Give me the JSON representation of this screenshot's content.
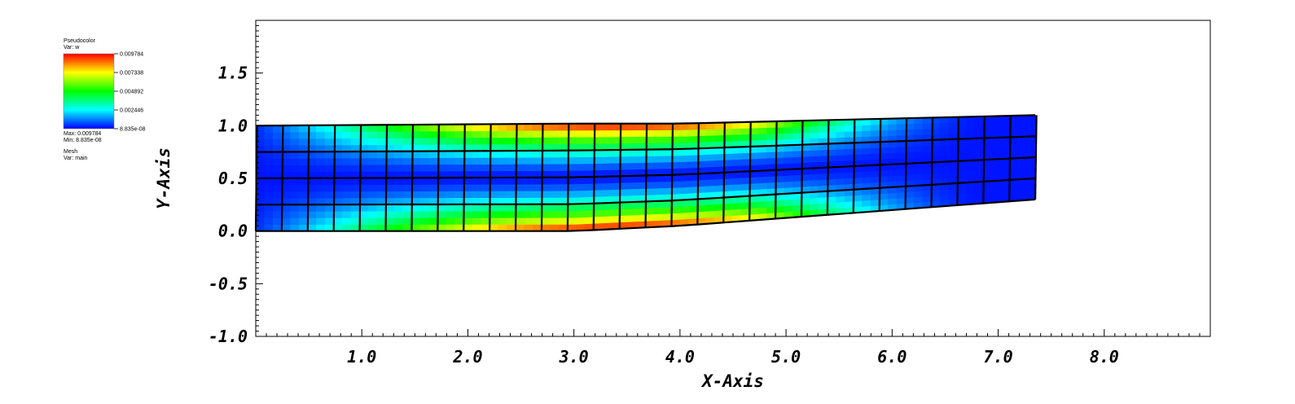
{
  "legend": {
    "plot_label": "Pseudocolor",
    "var_label": "Var: w",
    "ticks": [
      "0.009784",
      "0.007338",
      "0.004892",
      "0.002446",
      "8.835e-08"
    ],
    "max_label": "Max: 0.009784",
    "min_label": "Min: 8.835e-08",
    "mesh_label": "Mesh",
    "mesh_var_label": "Var: main"
  },
  "chart_data": {
    "type": "heatmap",
    "title": "",
    "xlabel": "X-Axis",
    "ylabel": "Y-Axis",
    "xlim": [
      0,
      9
    ],
    "ylim": [
      -1.0,
      2.0
    ],
    "x_ticks": [
      "1.0",
      "2.0",
      "3.0",
      "4.0",
      "5.0",
      "6.0",
      "7.0",
      "8.0"
    ],
    "x_tick_values": [
      1,
      2,
      3,
      4,
      5,
      6,
      7,
      8
    ],
    "y_ticks": [
      "1.5",
      "1.0",
      "0.5",
      "0.0",
      "-0.5",
      "-1.0"
    ],
    "y_tick_values": [
      1.5,
      1.0,
      0.5,
      0.0,
      -0.5,
      -1.0
    ],
    "colormap": [
      "#0000ff",
      "#00ffff",
      "#00ff00",
      "#ffff00",
      "#ff0000"
    ],
    "value_range": [
      8.835e-08,
      0.009784
    ],
    "mesh": {
      "columns": 30,
      "rows": 4,
      "x_start": 0.0,
      "x_end": 7.35,
      "bottom_edge": [
        [
          0.0,
          0.0
        ],
        [
          3.0,
          0.0
        ],
        [
          4.0,
          0.05
        ],
        [
          7.35,
          0.3
        ]
      ],
      "top_edge": [
        [
          0.0,
          1.0
        ],
        [
          3.0,
          1.02
        ],
        [
          4.0,
          1.02
        ],
        [
          7.35,
          1.1
        ]
      ]
    }
  }
}
